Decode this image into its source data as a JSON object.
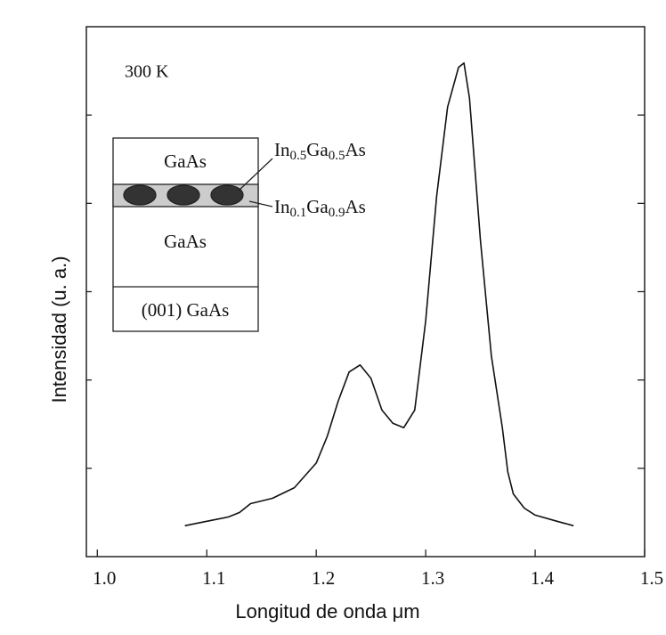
{
  "chart_data": {
    "type": "line",
    "x_label": "Longitud de onda  μm",
    "y_label": "Intensidad (u. a.)",
    "annotation": "300 K",
    "inset": {
      "layers": [
        "GaAs",
        "GaAs",
        "(001) GaAs"
      ],
      "dots_label_parts": [
        "In",
        "0.5",
        "Ga",
        "0.5",
        "As"
      ],
      "well_label_parts": [
        "In",
        "0.1",
        "Ga",
        "0.9",
        "As"
      ]
    },
    "x": [
      1.08,
      1.1,
      1.12,
      1.13,
      1.14,
      1.16,
      1.18,
      1.2,
      1.21,
      1.22,
      1.23,
      1.24,
      1.25,
      1.26,
      1.27,
      1.28,
      1.29,
      1.3,
      1.31,
      1.32,
      1.33,
      1.335,
      1.34,
      1.35,
      1.36,
      1.37,
      1.375,
      1.38,
      1.39,
      1.4,
      1.42,
      1.435
    ],
    "series": [
      {
        "color": "#111111",
        "values": [
          0.35,
          0.4,
          0.45,
          0.5,
          0.6,
          0.66,
          0.78,
          1.06,
          1.36,
          1.76,
          2.09,
          2.17,
          2.02,
          1.66,
          1.51,
          1.46,
          1.66,
          2.67,
          4.08,
          5.09,
          5.54,
          5.59,
          5.19,
          3.58,
          2.27,
          1.46,
          0.96,
          0.71,
          0.55,
          0.47,
          0.4,
          0.35
        ]
      }
    ],
    "xlim": [
      0.99,
      1.5
    ],
    "xticks": [
      {
        "value": 1.0,
        "label": "1.0"
      },
      1.1,
      1.2,
      1.3,
      1.4,
      1.5
    ],
    "ylim": [
      0,
      6
    ],
    "yticks": [
      1,
      2,
      3,
      4,
      5
    ],
    "show_ytick_labels": false
  }
}
